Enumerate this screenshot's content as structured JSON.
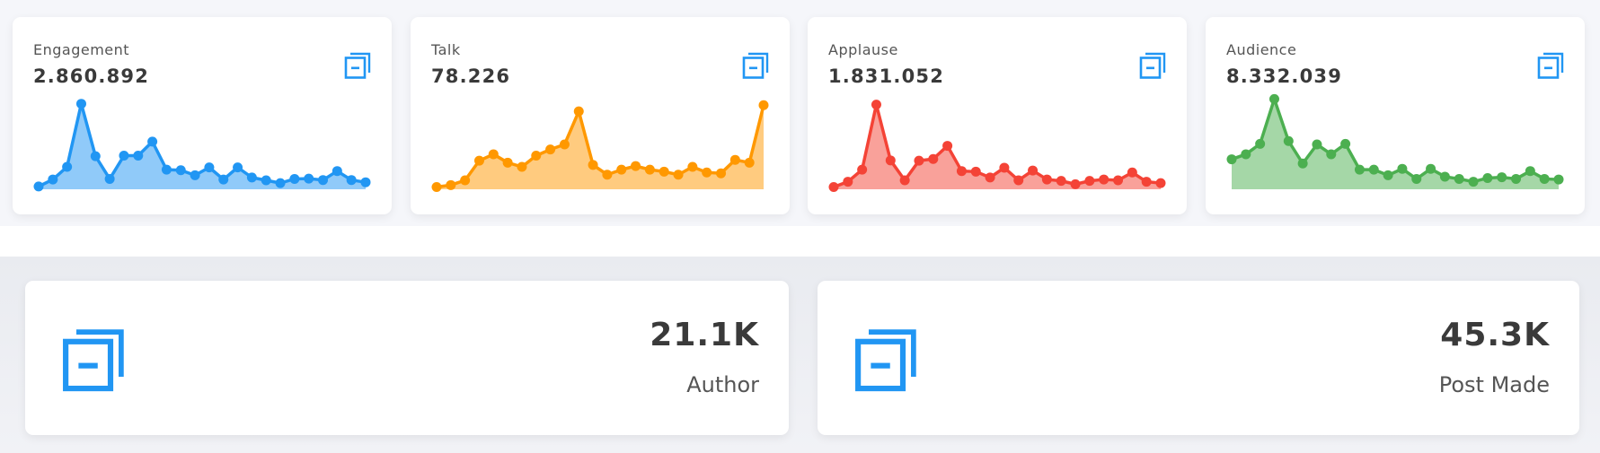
{
  "stats": [
    {
      "label": "Engagement",
      "value": "2.860.892",
      "icon": "copy-minus-icon",
      "color": "#2196f3",
      "values": [
        10,
        35,
        80,
        305,
        118,
        37,
        120,
        120,
        170,
        70,
        68,
        50,
        78,
        35,
        78,
        42,
        32,
        22,
        37,
        38,
        33,
        65,
        33,
        25
      ]
    },
    {
      "label": "Talk",
      "value": "78.226",
      "icon": "copy-minus-icon",
      "color": "#ff9800",
      "values": [
        8,
        15,
        32,
        102,
        125,
        95,
        80,
        120,
        142,
        160,
        278,
        87,
        52,
        70,
        83,
        70,
        63,
        52,
        80,
        60,
        57,
        105,
        95,
        300
      ]
    },
    {
      "label": "Applause",
      "value": "1.831.052",
      "icon": "copy-minus-icon",
      "color": "#f44336",
      "values": [
        8,
        27,
        70,
        302,
        103,
        32,
        102,
        108,
        155,
        65,
        63,
        42,
        77,
        32,
        67,
        35,
        30,
        18,
        30,
        35,
        32,
        60,
        27,
        22
      ]
    },
    {
      "label": "Audience",
      "value": "8.332.039",
      "icon": "copy-minus-icon",
      "color": "#4caf50",
      "values": [
        107,
        125,
        162,
        322,
        172,
        92,
        160,
        125,
        162,
        70,
        70,
        50,
        73,
        37,
        73,
        45,
        37,
        27,
        40,
        43,
        37,
        65,
        37,
        35
      ]
    }
  ],
  "summary": [
    {
      "value": "21.1K",
      "label": "Author",
      "icon": "copy-minus-icon"
    },
    {
      "value": "45.3K",
      "label": "Post Made",
      "icon": "copy-minus-icon"
    }
  ],
  "icon_color": "#2196f3"
}
